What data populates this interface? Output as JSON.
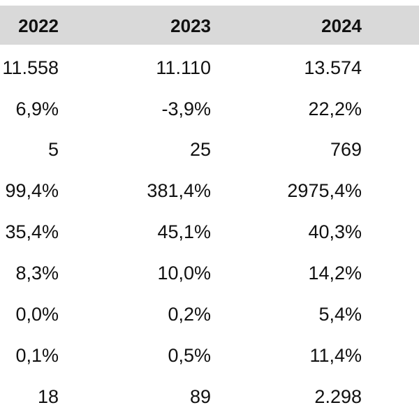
{
  "table": {
    "headers": [
      "2022",
      "2023",
      "2024"
    ],
    "rows": [
      [
        "11.558",
        "11.110",
        "13.574"
      ],
      [
        "6,9%",
        "-3,9%",
        "22,2%"
      ],
      [
        "5",
        "25",
        "769"
      ],
      [
        "99,4%",
        "381,4%",
        "2975,4%"
      ],
      [
        "35,4%",
        "45,1%",
        "40,3%"
      ],
      [
        "8,3%",
        "10,0%",
        "14,2%"
      ],
      [
        "0,0%",
        "0,2%",
        "5,4%"
      ],
      [
        "0,1%",
        "0,5%",
        "11,4%"
      ],
      [
        "18",
        "89",
        "2.298"
      ]
    ]
  },
  "colors": {
    "header_background": "#d9d9d9",
    "text": "#111111",
    "background": "#ffffff"
  }
}
